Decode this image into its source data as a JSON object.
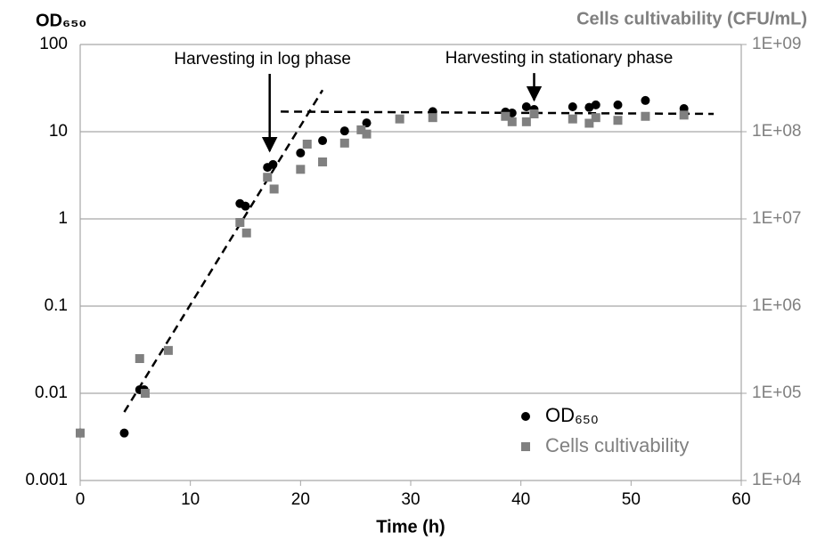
{
  "chart_data": {
    "type": "scatter",
    "ylabel": "OD₆₅₀",
    "y2label": "Cells cultivability (CFU/mL)",
    "xlabel": "Time (h)",
    "xlim": [
      0,
      60
    ],
    "xticks": [
      0,
      10,
      20,
      30,
      40,
      50,
      60
    ],
    "ylim": [
      0.001,
      100
    ],
    "yticks": [
      0.001,
      0.01,
      0.1,
      1,
      10,
      100
    ],
    "y2lim": [
      10000,
      1000000000
    ],
    "y2ticks": [
      {
        "value": 10000,
        "label": "1E+04"
      },
      {
        "value": 100000,
        "label": "1E+05"
      },
      {
        "value": 1000000,
        "label": "1E+06"
      },
      {
        "value": 10000000,
        "label": "1E+07"
      },
      {
        "value": 100000000,
        "label": "1E+08"
      },
      {
        "value": 1000000000,
        "label": "1E+09"
      }
    ],
    "log_scale": true,
    "grid": true,
    "legend": "lower right",
    "series": [
      {
        "name": "OD₆₅₀",
        "color": "#000000",
        "marker": "circle",
        "x": [
          0,
          4,
          5.4,
          5.8,
          14.5,
          15,
          17,
          17.5,
          20,
          22,
          24,
          26,
          32,
          38.6,
          39.2,
          40.5,
          41.2,
          44.7,
          46.2,
          46.8,
          48.8,
          51.3,
          54.8
        ],
        "values": [
          0.0035,
          0.0035,
          0.011,
          0.011,
          1.5,
          1.4,
          3.9,
          4.2,
          5.7,
          7.9,
          10.2,
          12.6,
          17,
          16.8,
          16.4,
          19.3,
          18,
          19.3,
          19,
          20.3,
          20.3,
          22.8,
          18.4
        ]
      },
      {
        "name": "Cells cultivability",
        "color": "#808080",
        "marker": "square",
        "axis": "y2",
        "x": [
          0,
          5.4,
          5.9,
          8,
          14.5,
          15.1,
          17,
          17.6,
          20,
          20.6,
          22,
          24,
          25.5,
          26,
          29,
          32,
          38.6,
          39.2,
          40.5,
          41.2,
          44.7,
          46.2,
          46.8,
          48.8,
          51.3,
          54.8
        ],
        "values": [
          35000,
          250000,
          100000,
          310000,
          9100000,
          6900000,
          30000000,
          22000000,
          37000000,
          72000000,
          45000000,
          74000000,
          105000000,
          94000000,
          140000000,
          145000000,
          150000000,
          130000000,
          130000000,
          160000000,
          140000000,
          125000000,
          145000000,
          135000000,
          150000000,
          155000000
        ]
      }
    ],
    "trend_lines": [
      {
        "x": [
          4,
          22
        ],
        "y": [
          0.0061,
          30
        ]
      },
      {
        "x": [
          18.2,
          57.5
        ],
        "y": [
          17,
          16
        ]
      }
    ],
    "annotations": [
      {
        "text": "Harvesting in log phase",
        "x": 17.2,
        "y_from": 46,
        "y_to": 6
      },
      {
        "text": "Harvesting in stationary phase",
        "x": 41.2,
        "y_from": 47,
        "y_to": 23
      }
    ]
  }
}
